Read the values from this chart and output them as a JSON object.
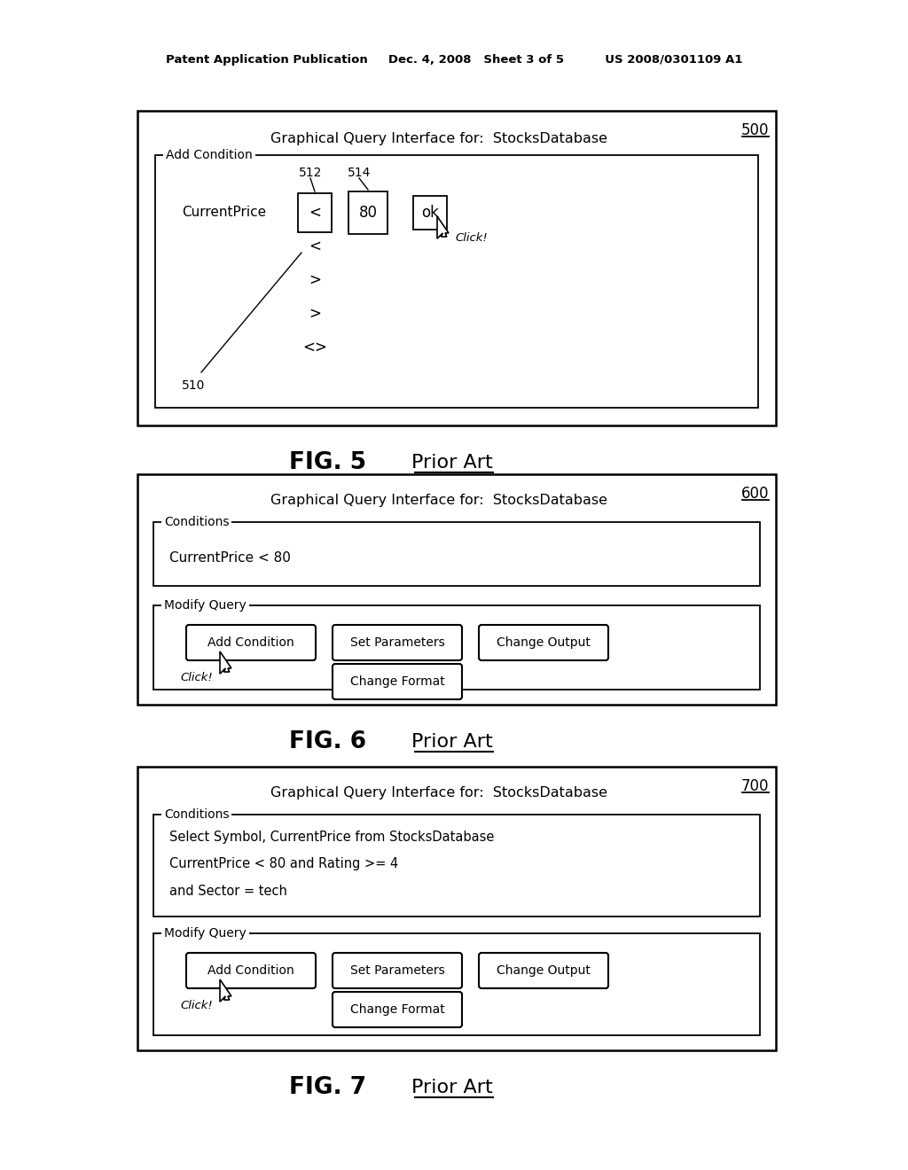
{
  "bg_color": "#ffffff",
  "header": "Patent Application Publication     Dec. 4, 2008   Sheet 3 of 5          US 2008/0301109 A1",
  "fig5": {
    "title": "Graphical Query Interface for:  StocksDatabase",
    "ref": "500",
    "outer": [
      155,
      125,
      720,
      355
    ],
    "inner": [
      175,
      175,
      680,
      285
    ],
    "add_cond_label": "Add Condition",
    "cp_label": "CurrentPrice",
    "note_510": "510",
    "lbl_512": "512",
    "lbl_514": "514",
    "op_text": "<",
    "val_text": "80",
    "ok_text": "ok",
    "dropdown": [
      "<",
      ">",
      ">",
      "<>"
    ],
    "click": "Click!",
    "fig_label": "FIG. 5",
    "prior_art": "Prior Art"
  },
  "fig6": {
    "title": "Graphical Query Interface for:  StocksDatabase",
    "ref": "600",
    "outer": [
      155,
      535,
      720,
      260
    ],
    "cond_label": "Conditions",
    "cond_text": "CurrentPrice < 80",
    "mod_label": "Modify Query",
    "buttons_row1": [
      "Add Condition",
      "Set Parameters",
      "Change Output"
    ],
    "buttons_row2": [
      "Change Format"
    ],
    "click": "Click!",
    "fig_label": "FIG. 6",
    "prior_art": "Prior Art"
  },
  "fig7": {
    "title": "Graphical Query Interface for:  StocksDatabase",
    "ref": "700",
    "outer": [
      155,
      865,
      720,
      320
    ],
    "cond_label": "Conditions",
    "cond_lines": [
      "Select Symbol, CurrentPrice from StocksDatabase",
      "CurrentPrice < 80 and Rating >= 4",
      "and Sector = tech"
    ],
    "mod_label": "Modify Query",
    "buttons_row1": [
      "Add Condition",
      "Set Parameters",
      "Change Output"
    ],
    "buttons_row2": [
      "Change Format"
    ],
    "click": "Click!",
    "fig_label": "FIG. 7",
    "prior_art": "Prior Art"
  }
}
